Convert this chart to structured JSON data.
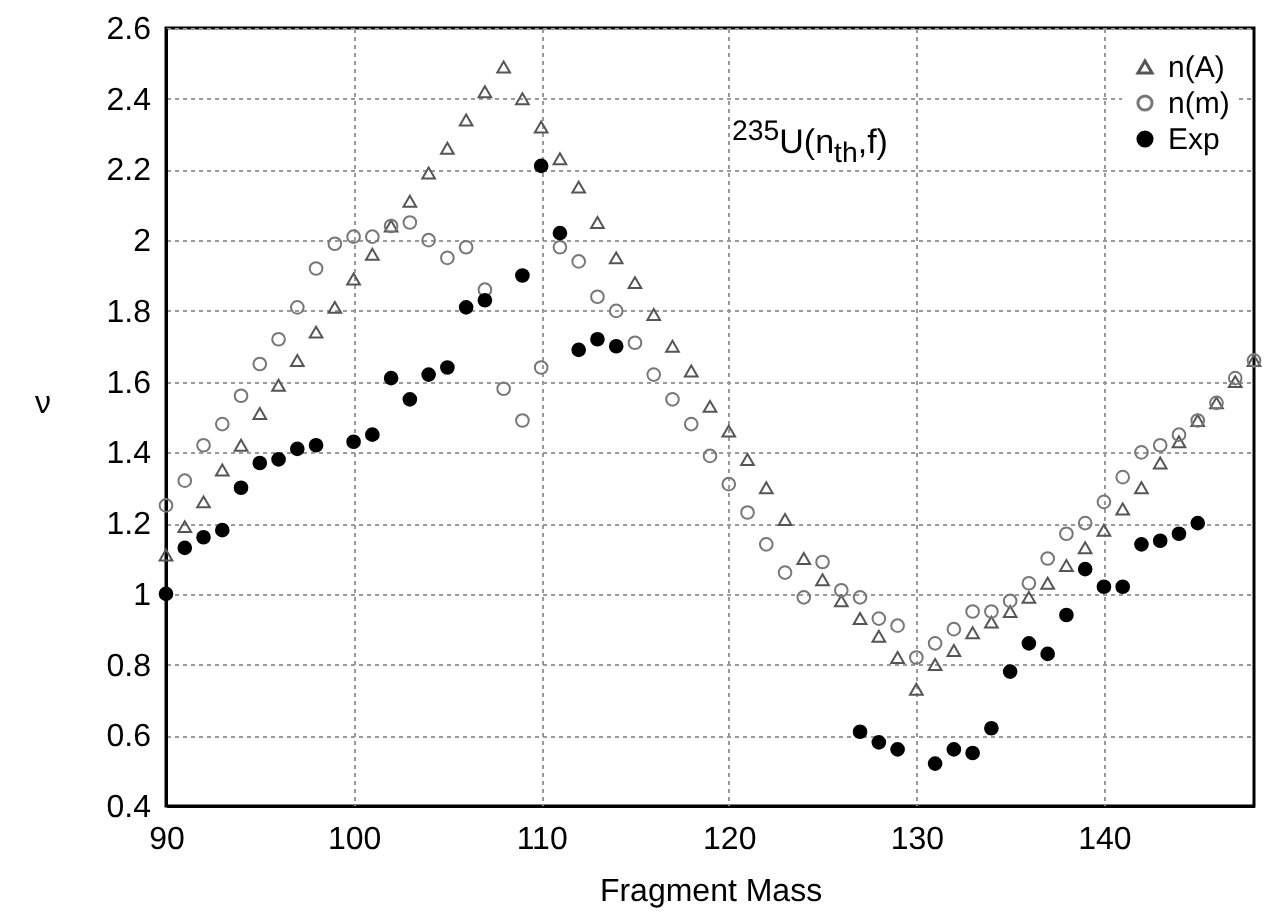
{
  "chart_data": {
    "type": "scatter",
    "xlabel": "Fragment Mass",
    "ylabel": "ν",
    "xlim": [
      90,
      148
    ],
    "ylim": [
      0.4,
      2.6
    ],
    "xticks": [
      90,
      100,
      110,
      120,
      130,
      140
    ],
    "yticks": [
      0.4,
      0.6,
      0.8,
      1,
      1.2,
      1.4,
      1.6,
      1.8,
      2,
      2.2,
      2.4,
      2.6
    ],
    "grid": true,
    "legend": "top right",
    "annotations": [
      "$^{235}$U(n$_{th}$,f)"
    ],
    "series": [
      {
        "name": "n(A)",
        "color": "#555555",
        "marker": "triangle",
        "x": [
          90,
          91,
          92,
          93,
          94,
          95,
          96,
          97,
          98,
          99,
          100,
          101,
          102,
          103,
          104,
          105,
          106,
          107,
          108,
          109,
          110,
          111,
          112,
          113,
          114,
          115,
          116,
          117,
          118,
          119,
          120,
          121,
          122,
          123,
          124,
          125,
          126,
          127,
          128,
          129,
          130,
          131,
          132,
          133,
          134,
          135,
          136,
          137,
          138,
          139,
          140,
          141,
          142,
          143,
          144,
          145,
          146,
          147,
          148
        ],
        "values": [
          1.11,
          1.19,
          1.26,
          1.35,
          1.42,
          1.51,
          1.59,
          1.66,
          1.74,
          1.81,
          1.89,
          1.96,
          2.04,
          2.11,
          2.19,
          2.26,
          2.34,
          2.42,
          2.49,
          2.4,
          2.32,
          2.23,
          2.15,
          2.05,
          1.95,
          1.88,
          1.79,
          1.7,
          1.63,
          1.53,
          1.46,
          1.38,
          1.3,
          1.21,
          1.1,
          1.04,
          0.98,
          0.93,
          0.88,
          0.82,
          0.73,
          0.8,
          0.84,
          0.89,
          0.92,
          0.95,
          0.99,
          1.03,
          1.08,
          1.13,
          1.18,
          1.24,
          1.3,
          1.37,
          1.43,
          1.49,
          1.54,
          1.6,
          1.66
        ]
      },
      {
        "name": "n(m)",
        "color": "#777777",
        "marker": "circle",
        "x": [
          90,
          91,
          92,
          93,
          94,
          95,
          96,
          97,
          98,
          99,
          100,
          101,
          102,
          103,
          104,
          105,
          106,
          107,
          108,
          109,
          110,
          111,
          112,
          113,
          114,
          115,
          116,
          117,
          118,
          119,
          120,
          121,
          122,
          123,
          124,
          125,
          126,
          127,
          128,
          129,
          130,
          131,
          132,
          133,
          134,
          135,
          136,
          137,
          138,
          139,
          140,
          141,
          142,
          143,
          144,
          145,
          146,
          147,
          148
        ],
        "values": [
          1.25,
          1.32,
          1.42,
          1.48,
          1.56,
          1.65,
          1.72,
          1.81,
          1.92,
          1.99,
          2.01,
          2.01,
          2.04,
          2.05,
          2,
          1.95,
          1.98,
          1.86,
          1.58,
          1.49,
          1.64,
          1.98,
          1.94,
          1.84,
          1.8,
          1.71,
          1.62,
          1.55,
          1.48,
          1.39,
          1.31,
          1.23,
          1.14,
          1.06,
          0.99,
          1.09,
          1.01,
          0.99,
          0.93,
          0.91,
          0.82,
          0.86,
          0.9,
          0.95,
          0.95,
          0.98,
          1.03,
          1.1,
          1.17,
          1.2,
          1.26,
          1.33,
          1.4,
          1.42,
          1.45,
          1.49,
          1.54,
          1.61,
          1.66
        ]
      },
      {
        "name": "Exp",
        "color": "#000000",
        "marker": "circle",
        "x": [
          90,
          91,
          92,
          93,
          94,
          95,
          96,
          97,
          98,
          100,
          101,
          102,
          103,
          104,
          105,
          106,
          107,
          109,
          110,
          111,
          112,
          113,
          114,
          127,
          128,
          129,
          131,
          132,
          133,
          134,
          135,
          136,
          137,
          138,
          139,
          140,
          141,
          142,
          143,
          144,
          145
        ],
        "values": [
          1,
          1.13,
          1.16,
          1.18,
          1.3,
          1.37,
          1.38,
          1.41,
          1.42,
          1.43,
          1.45,
          1.61,
          1.55,
          1.62,
          1.64,
          1.81,
          1.83,
          1.9,
          2.21,
          2.02,
          1.69,
          1.72,
          1.7,
          0.61,
          0.58,
          0.56,
          0.52,
          0.56,
          0.55,
          0.62,
          0.78,
          0.86,
          0.83,
          0.94,
          1.07,
          1.02,
          1.02,
          1.14,
          1.15,
          1.17,
          1.2
        ]
      }
    ]
  }
}
